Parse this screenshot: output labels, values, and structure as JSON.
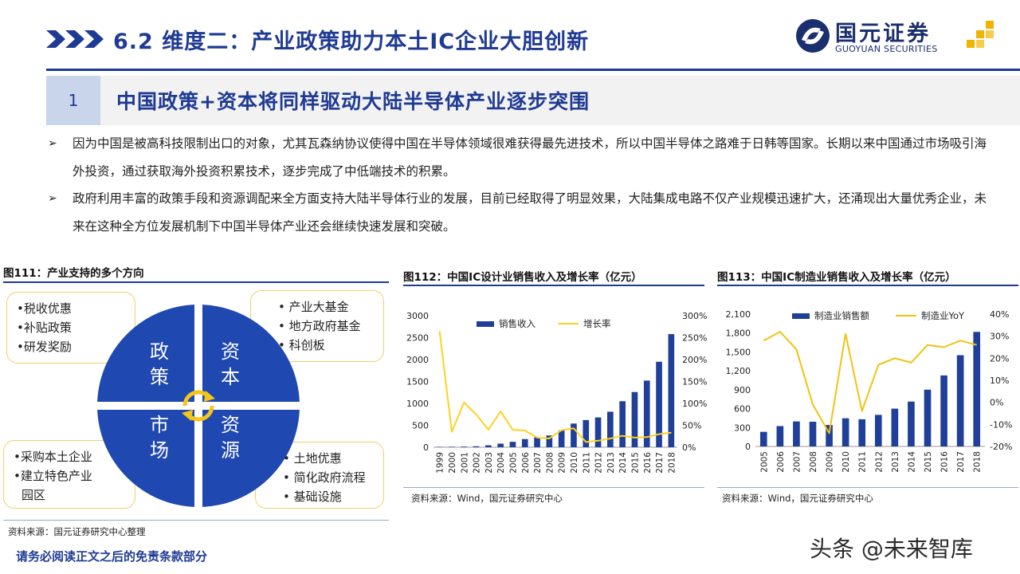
{
  "header": {
    "title": "6.2 维度二：产业政策助力本土IC企业大胆创新",
    "logo_name": "国元证券",
    "logo_en": "GUOYUAN SECURITIES"
  },
  "section": {
    "number": "1",
    "title": "中国政策+资本将同样驱动大陆半导体产业逐步突围"
  },
  "bullets": [
    "因为中国是被高科技限制出口的对象，尤其瓦森纳协议使得中国在半导体领域很难获得最先进技术，所以中国半导体之路难于日韩等国家。长期以来中国通过市场吸引海外投资，通过获取海外投资积累技术，逐步完成了中低端技术的积累。",
    "政府利用丰富的政策手段和资源调配来全方面支持大陆半导体行业的发展，目前已经取得了明显效果，大陆集成电路不仅产业规模迅速扩大，还涌现出大量优秀企业，未来在这种全方位发展机制下中国半导体产业还会继续快速发展和突破。"
  ],
  "bullet_marker": "➢",
  "fig111": {
    "title": "图111：产业支持的多个方向",
    "quadrants": [
      {
        "label_1": "政",
        "label_2": "策"
      },
      {
        "label_1": "资",
        "label_2": "本"
      },
      {
        "label_1": "市",
        "label_2": "场"
      },
      {
        "label_1": "资",
        "label_2": "源"
      }
    ],
    "boxes": {
      "policy": [
        "•税收优惠",
        "•补贴政策",
        "•研发奖励"
      ],
      "capital": [
        "• 产业大基金",
        "• 地方政府基金",
        "• 科创板"
      ],
      "market": [
        "•采购本土企业",
        "•建立特色产业",
        "  园区"
      ],
      "resource": [
        "• 土地优惠",
        "• 简化政府流程",
        "• 基础设施"
      ]
    },
    "source": "资料来源：国元证券研究中心整理"
  },
  "chart_data": [
    {
      "type": "bar",
      "title": "图112：中国IC设计业销售收入及增长率（亿元）",
      "categories": [
        "1999",
        "2000",
        "2001",
        "2002",
        "2003",
        "2004",
        "2005",
        "2006",
        "2007",
        "2008",
        "2009",
        "2010",
        "2011",
        "2012",
        "2013",
        "2014",
        "2015",
        "2016",
        "2017",
        "2018"
      ],
      "series": [
        {
          "name": "销售收入",
          "kind": "bar",
          "axis": "left",
          "color": "#1f3f99",
          "values": [
            8,
            11,
            15,
            22,
            45,
            82,
            124,
            186,
            225,
            269,
            385,
            540,
            620,
            680,
            810,
            1050,
            1260,
            1520,
            1950,
            2580
          ]
        },
        {
          "name": "增长率",
          "kind": "line",
          "axis": "right",
          "color": "#ffd21f",
          "values": [
            265,
            35,
            102,
            75,
            40,
            82,
            40,
            38,
            22,
            20,
            39,
            43,
            12,
            15,
            20,
            26,
            22,
            23,
            30,
            33
          ]
        }
      ],
      "ylim_left": [
        0,
        3000
      ],
      "yticks_left": [
        "0",
        "500",
        "1000",
        "1500",
        "2000",
        "2500",
        "3000"
      ],
      "ylim_right": [
        0,
        300
      ],
      "yticks_right": [
        "0%",
        "50%",
        "100%",
        "150%",
        "200%",
        "250%",
        "300%"
      ],
      "legend_position": "top",
      "source": "资料来源：Wind，国元证券研究中心"
    },
    {
      "type": "bar",
      "title": "图113：中国IC制造业销售收入及增长率（亿元）",
      "categories": [
        "2005",
        "2006",
        "2007",
        "2008",
        "2009",
        "2010",
        "2011",
        "2012",
        "2013",
        "2014",
        "2015",
        "2016",
        "2017",
        "2018"
      ],
      "series": [
        {
          "name": "制造业销售额",
          "kind": "bar",
          "axis": "left",
          "color": "#1f3f99",
          "values": [
            232,
            323,
            397,
            392,
            341,
            447,
            431,
            501,
            600,
            712,
            901,
            1127,
            1448,
            1818
          ]
        },
        {
          "name": "制造业YoY",
          "kind": "line",
          "axis": "right",
          "color": "#f0c30f",
          "values": [
            28,
            32,
            24,
            -1,
            -14,
            31,
            -4,
            17,
            20,
            18,
            26,
            25,
            28,
            26
          ]
        }
      ],
      "ylim_left": [
        0,
        2100
      ],
      "yticks_left": [
        "0",
        "300",
        "600",
        "900",
        "1,200",
        "1,500",
        "1,800",
        "2,100"
      ],
      "ylim_right": [
        -20,
        40
      ],
      "yticks_right": [
        "-20%",
        "-10%",
        "0%",
        "10%",
        "20%",
        "30%",
        "40%"
      ],
      "legend_position": "top",
      "source": "资料来源：Wind，国元证券研究中心"
    }
  ],
  "footer": {
    "disclaimer": "请务必阅读正文之后的免责条款部分",
    "watermark": "头条 @未来智库"
  },
  "colors": {
    "brand_blue": "#1f3a93",
    "circle_blue": "#1f48b0",
    "box_border": "#f2cf6a",
    "arrow_gold": "#f5c518"
  },
  "icons": [
    "chevron-arrows-icon",
    "guoyuan-logo-icon",
    "cycle-arrows-icon"
  ]
}
